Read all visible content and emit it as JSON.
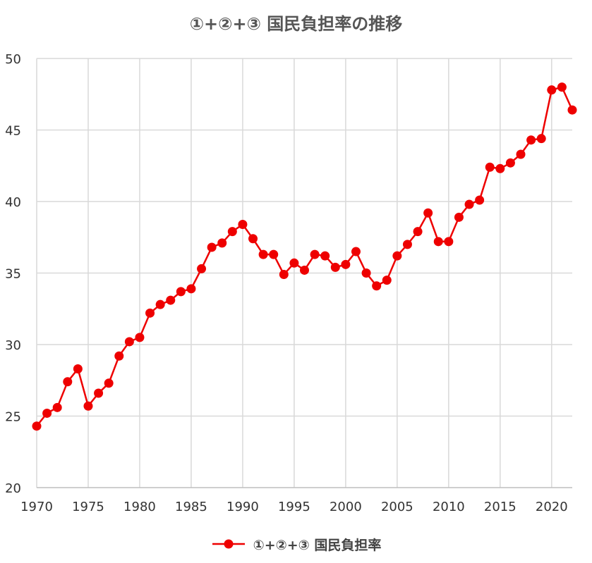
{
  "chart_data": {
    "type": "line",
    "title": "①+②+③ 国民負担率の推移",
    "xlabel": "",
    "ylabel": "",
    "xlim": [
      1970,
      2022
    ],
    "ylim": [
      20,
      50
    ],
    "x_ticks": [
      1970,
      1975,
      1980,
      1985,
      1990,
      1995,
      2000,
      2005,
      2010,
      2015,
      2020
    ],
    "y_ticks": [
      20,
      25,
      30,
      35,
      40,
      45,
      50
    ],
    "grid": true,
    "legend_position": "bottom",
    "series": [
      {
        "name": "①+②+③ 国民負担率",
        "color": "#ee0000",
        "x": [
          1970,
          1971,
          1972,
          1973,
          1974,
          1975,
          1976,
          1977,
          1978,
          1979,
          1980,
          1981,
          1982,
          1983,
          1984,
          1985,
          1986,
          1987,
          1988,
          1989,
          1990,
          1991,
          1992,
          1993,
          1994,
          1995,
          1996,
          1997,
          1998,
          1999,
          2000,
          2001,
          2002,
          2003,
          2004,
          2005,
          2006,
          2007,
          2008,
          2009,
          2010,
          2011,
          2012,
          2013,
          2014,
          2015,
          2016,
          2017,
          2018,
          2019,
          2020,
          2021,
          2022
        ],
        "values": [
          24.3,
          25.2,
          25.6,
          27.4,
          28.3,
          25.7,
          26.6,
          27.3,
          29.2,
          30.2,
          30.5,
          32.2,
          32.8,
          33.1,
          33.7,
          33.9,
          35.3,
          36.8,
          37.1,
          37.9,
          38.4,
          37.4,
          36.3,
          36.3,
          34.9,
          35.7,
          35.2,
          36.3,
          36.2,
          35.4,
          35.6,
          36.5,
          35.0,
          34.1,
          34.5,
          36.2,
          37.0,
          37.9,
          39.2,
          37.2,
          37.2,
          38.9,
          39.8,
          40.1,
          42.4,
          42.3,
          42.7,
          43.3,
          44.3,
          44.4,
          47.8,
          48.0,
          46.4
        ]
      }
    ]
  }
}
